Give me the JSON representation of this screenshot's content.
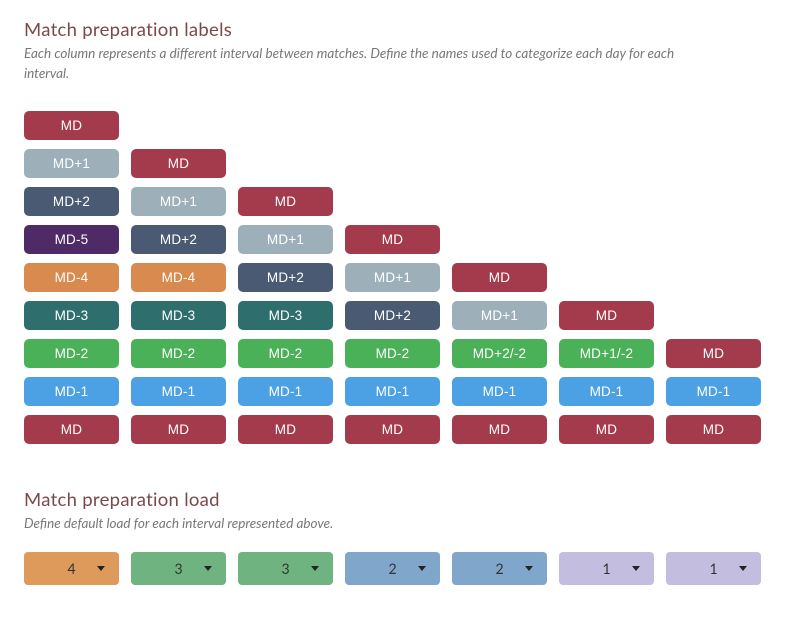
{
  "sections": {
    "labels": {
      "title": "Match preparation labels",
      "subtitle": "Each column represents a different interval between matches. Define the names used to categorize each day for each interval."
    },
    "load": {
      "title": "Match preparation load",
      "subtitle": "Define default load for each interval represented above."
    }
  },
  "palette": {
    "md": "#a43b4c",
    "md_plus1": "#9db0ba",
    "md_plus2": "#4a5a73",
    "md_minus5": "#4e2a66",
    "md_minus4": "#d98a4f",
    "md_minus3": "#2e6f6e",
    "md_minus2": "#4bb158",
    "md_minus1": "#4ba1e3",
    "pill_text": "#ffffff"
  },
  "label_columns": [
    [
      {
        "text": "MD",
        "color": "md"
      },
      {
        "text": "MD+1",
        "color": "md_plus1"
      },
      {
        "text": "MD+2",
        "color": "md_plus2"
      },
      {
        "text": "MD-5",
        "color": "md_minus5"
      },
      {
        "text": "MD-4",
        "color": "md_minus4"
      },
      {
        "text": "MD-3",
        "color": "md_minus3"
      },
      {
        "text": "MD-2",
        "color": "md_minus2"
      },
      {
        "text": "MD-1",
        "color": "md_minus1"
      },
      {
        "text": "MD",
        "color": "md"
      }
    ],
    [
      {
        "text": "MD",
        "color": "md"
      },
      {
        "text": "MD+1",
        "color": "md_plus1"
      },
      {
        "text": "MD+2",
        "color": "md_plus2"
      },
      {
        "text": "MD-4",
        "color": "md_minus4"
      },
      {
        "text": "MD-3",
        "color": "md_minus3"
      },
      {
        "text": "MD-2",
        "color": "md_minus2"
      },
      {
        "text": "MD-1",
        "color": "md_minus1"
      },
      {
        "text": "MD",
        "color": "md"
      }
    ],
    [
      {
        "text": "MD",
        "color": "md"
      },
      {
        "text": "MD+1",
        "color": "md_plus1"
      },
      {
        "text": "MD+2",
        "color": "md_plus2"
      },
      {
        "text": "MD-3",
        "color": "md_minus3"
      },
      {
        "text": "MD-2",
        "color": "md_minus2"
      },
      {
        "text": "MD-1",
        "color": "md_minus1"
      },
      {
        "text": "MD",
        "color": "md"
      }
    ],
    [
      {
        "text": "MD",
        "color": "md"
      },
      {
        "text": "MD+1",
        "color": "md_plus1"
      },
      {
        "text": "MD+2",
        "color": "md_plus2"
      },
      {
        "text": "MD-2",
        "color": "md_minus2"
      },
      {
        "text": "MD-1",
        "color": "md_minus1"
      },
      {
        "text": "MD",
        "color": "md"
      }
    ],
    [
      {
        "text": "MD",
        "color": "md"
      },
      {
        "text": "MD+1",
        "color": "md_plus1"
      },
      {
        "text": "MD+2/-2",
        "color": "md_minus2"
      },
      {
        "text": "MD-1",
        "color": "md_minus1"
      },
      {
        "text": "MD",
        "color": "md"
      }
    ],
    [
      {
        "text": "MD",
        "color": "md"
      },
      {
        "text": "MD+1/-2",
        "color": "md_minus2"
      },
      {
        "text": "MD-1",
        "color": "md_minus1"
      },
      {
        "text": "MD",
        "color": "md"
      }
    ],
    [
      {
        "text": "MD",
        "color": "md"
      },
      {
        "text": "MD-1",
        "color": "md_minus1"
      },
      {
        "text": "MD",
        "color": "md"
      }
    ]
  ],
  "load_palette": {
    "4": "#dd9a5a",
    "3": "#6fb480",
    "2": "#80a6cb",
    "1": "#c3bde0"
  },
  "loads": [
    "4",
    "3",
    "3",
    "2",
    "2",
    "1",
    "1"
  ]
}
